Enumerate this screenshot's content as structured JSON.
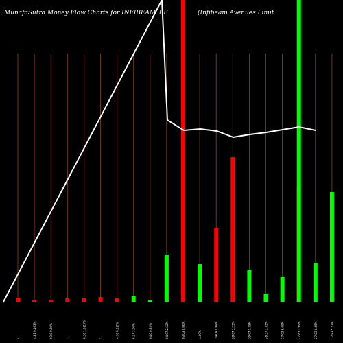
{
  "chart_title_left": "MunafaSutra  Money Flow  Charts for INFIBEAM_BE",
  "chart_title_right": "(Infibeam Avenues Limit",
  "colors": {
    "background": "#000000",
    "positive": "#00ff00",
    "negative": "#ff0000",
    "gridline": "#8b4513",
    "price_line": "#ffffff"
  },
  "chart_data": {
    "type": "bar",
    "categories": [
      "4",
      "4.81 0.163%",
      "03.8 0.80%",
      "3",
      "6.36 1.5.23%",
      "3",
      "4.76 0.2.2%",
      "6.34 3.06%",
      "04.0 0.33%",
      "04.07.2.52%",
      "03.03 0.06%",
      "4.09%",
      "29.09 0.98%",
      "28.07 3.23%",
      "29.07 1.35%",
      "28.37 1.35%",
      "27.03 6.09%",
      "27.83 1.99%",
      "27.83 0.85%",
      "27.83 5.23%",
      "0%",
      "29.09 2.85%"
    ],
    "series": [
      {
        "values": [
          6,
          -3,
          -1,
          5,
          5,
          7,
          5,
          9,
          -2,
          68,
          178,
          -55,
          108,
          211,
          -46,
          12,
          -36,
          168,
          56,
          160,
          112,
          170
        ],
        "colors": [
          "red",
          "red",
          "red",
          "red",
          "red",
          "red",
          "red",
          "green",
          "green",
          "green",
          "red",
          "green",
          "red",
          "red",
          "green",
          "green",
          "green",
          "red",
          "green",
          "green",
          "red",
          "red"
        ]
      }
    ],
    "price_line": [
      430,
      432,
      435,
      178,
      188,
      189,
      190,
      192,
      193,
      195,
      200,
      200,
      200,
      200,
      195,
      193,
      190,
      188,
      186,
      186,
      188,
      190
    ],
    "grid": true
  }
}
